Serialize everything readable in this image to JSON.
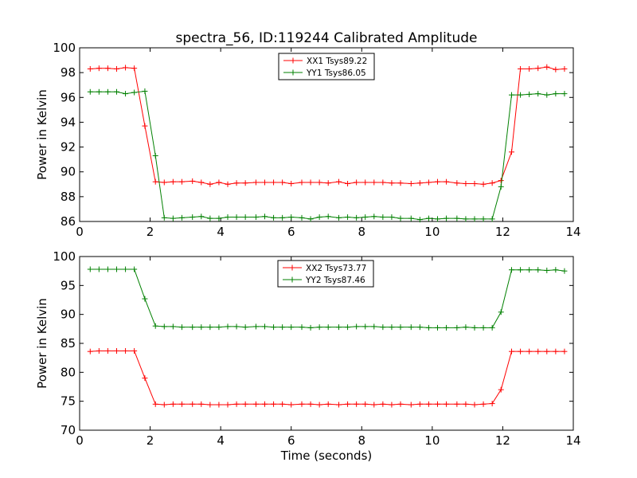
{
  "figure": {
    "title": "spectra_56, ID:119244 Calibrated Amplitude"
  },
  "chart_data": [
    {
      "type": "line",
      "title": "spectra_56, ID:119244 Calibrated Amplitude",
      "xlabel": "",
      "ylabel": "Power in Kelvin",
      "xlim": [
        0,
        14
      ],
      "ylim": [
        86,
        100
      ],
      "xticks": [
        "0",
        "2",
        "4",
        "6",
        "8",
        "10",
        "12",
        "14"
      ],
      "yticks": [
        "86",
        "88",
        "90",
        "92",
        "94",
        "96",
        "98",
        "100"
      ],
      "grid": false,
      "legend_position": "top-center",
      "x": [
        0.3,
        0.55,
        0.8,
        1.05,
        1.3,
        1.55,
        1.85,
        2.15,
        2.4,
        2.65,
        2.9,
        3.2,
        3.45,
        3.7,
        3.95,
        4.2,
        4.45,
        4.7,
        5.0,
        5.25,
        5.5,
        5.75,
        6.0,
        6.3,
        6.55,
        6.8,
        7.05,
        7.35,
        7.6,
        7.85,
        8.1,
        8.35,
        8.6,
        8.85,
        9.1,
        9.4,
        9.65,
        9.9,
        10.15,
        10.4,
        10.7,
        10.95,
        11.2,
        11.45,
        11.7,
        11.95,
        12.25,
        12.5,
        12.75,
        13.0,
        13.25,
        13.5,
        13.75
      ],
      "series": [
        {
          "name": "XX1 Tsys89.22",
          "color": "#ff0000",
          "values": [
            98.3,
            98.35,
            98.35,
            98.3,
            98.4,
            98.35,
            93.7,
            89.2,
            89.15,
            89.2,
            89.2,
            89.25,
            89.15,
            89.0,
            89.15,
            89.0,
            89.1,
            89.1,
            89.15,
            89.15,
            89.15,
            89.15,
            89.05,
            89.15,
            89.15,
            89.15,
            89.1,
            89.2,
            89.05,
            89.15,
            89.15,
            89.15,
            89.15,
            89.1,
            89.1,
            89.05,
            89.1,
            89.15,
            89.2,
            89.2,
            89.1,
            89.05,
            89.05,
            89.0,
            89.1,
            89.3,
            91.6,
            98.3,
            98.3,
            98.35,
            98.45,
            98.25,
            98.3
          ]
        },
        {
          "name": "YY1 Tsys86.05",
          "color": "#008000",
          "values": [
            96.45,
            96.45,
            96.45,
            96.45,
            96.3,
            96.4,
            96.5,
            91.3,
            86.3,
            86.25,
            86.3,
            86.35,
            86.4,
            86.25,
            86.25,
            86.35,
            86.35,
            86.35,
            86.35,
            86.4,
            86.3,
            86.3,
            86.35,
            86.3,
            86.2,
            86.35,
            86.4,
            86.3,
            86.35,
            86.3,
            86.35,
            86.4,
            86.35,
            86.35,
            86.25,
            86.25,
            86.15,
            86.25,
            86.2,
            86.25,
            86.25,
            86.2,
            86.2,
            86.2,
            86.2,
            88.8,
            96.2,
            96.2,
            96.25,
            96.3,
            96.2,
            96.3,
            96.3
          ]
        }
      ]
    },
    {
      "type": "line",
      "title": "",
      "xlabel": "Time (seconds)",
      "ylabel": "Power in Kelvin",
      "xlim": [
        0,
        14
      ],
      "ylim": [
        70,
        100
      ],
      "xticks": [
        "0",
        "2",
        "4",
        "6",
        "8",
        "10",
        "12",
        "14"
      ],
      "yticks": [
        "70",
        "75",
        "80",
        "85",
        "90",
        "95",
        "100"
      ],
      "grid": false,
      "legend_position": "top-center",
      "x": [
        0.3,
        0.55,
        0.8,
        1.05,
        1.3,
        1.55,
        1.85,
        2.15,
        2.4,
        2.65,
        2.9,
        3.2,
        3.45,
        3.7,
        3.95,
        4.2,
        4.45,
        4.7,
        5.0,
        5.25,
        5.5,
        5.75,
        6.0,
        6.3,
        6.55,
        6.8,
        7.05,
        7.35,
        7.6,
        7.85,
        8.1,
        8.35,
        8.6,
        8.85,
        9.1,
        9.4,
        9.65,
        9.9,
        10.15,
        10.4,
        10.7,
        10.95,
        11.2,
        11.45,
        11.7,
        11.95,
        12.25,
        12.5,
        12.75,
        13.0,
        13.25,
        13.5,
        13.75
      ],
      "series": [
        {
          "name": "XX2 Tsys73.77",
          "color": "#ff0000",
          "values": [
            83.6,
            83.7,
            83.7,
            83.7,
            83.7,
            83.7,
            79.0,
            74.5,
            74.4,
            74.5,
            74.5,
            74.5,
            74.5,
            74.4,
            74.4,
            74.4,
            74.5,
            74.5,
            74.5,
            74.5,
            74.5,
            74.5,
            74.4,
            74.5,
            74.5,
            74.4,
            74.5,
            74.4,
            74.5,
            74.5,
            74.5,
            74.4,
            74.5,
            74.4,
            74.5,
            74.4,
            74.5,
            74.5,
            74.5,
            74.5,
            74.5,
            74.5,
            74.4,
            74.5,
            74.6,
            77.0,
            83.6,
            83.6,
            83.6,
            83.6,
            83.6,
            83.6,
            83.6
          ]
        },
        {
          "name": "YY2 Tsys87.46",
          "color": "#008000",
          "values": [
            97.8,
            97.8,
            97.8,
            97.8,
            97.8,
            97.8,
            92.7,
            88.0,
            87.9,
            87.9,
            87.8,
            87.8,
            87.8,
            87.8,
            87.8,
            87.9,
            87.9,
            87.8,
            87.9,
            87.9,
            87.8,
            87.8,
            87.8,
            87.8,
            87.7,
            87.8,
            87.8,
            87.8,
            87.8,
            87.9,
            87.9,
            87.9,
            87.8,
            87.8,
            87.8,
            87.8,
            87.8,
            87.7,
            87.7,
            87.7,
            87.7,
            87.8,
            87.7,
            87.7,
            87.7,
            90.4,
            97.7,
            97.7,
            97.7,
            97.7,
            97.6,
            97.7,
            97.5
          ]
        }
      ]
    }
  ]
}
